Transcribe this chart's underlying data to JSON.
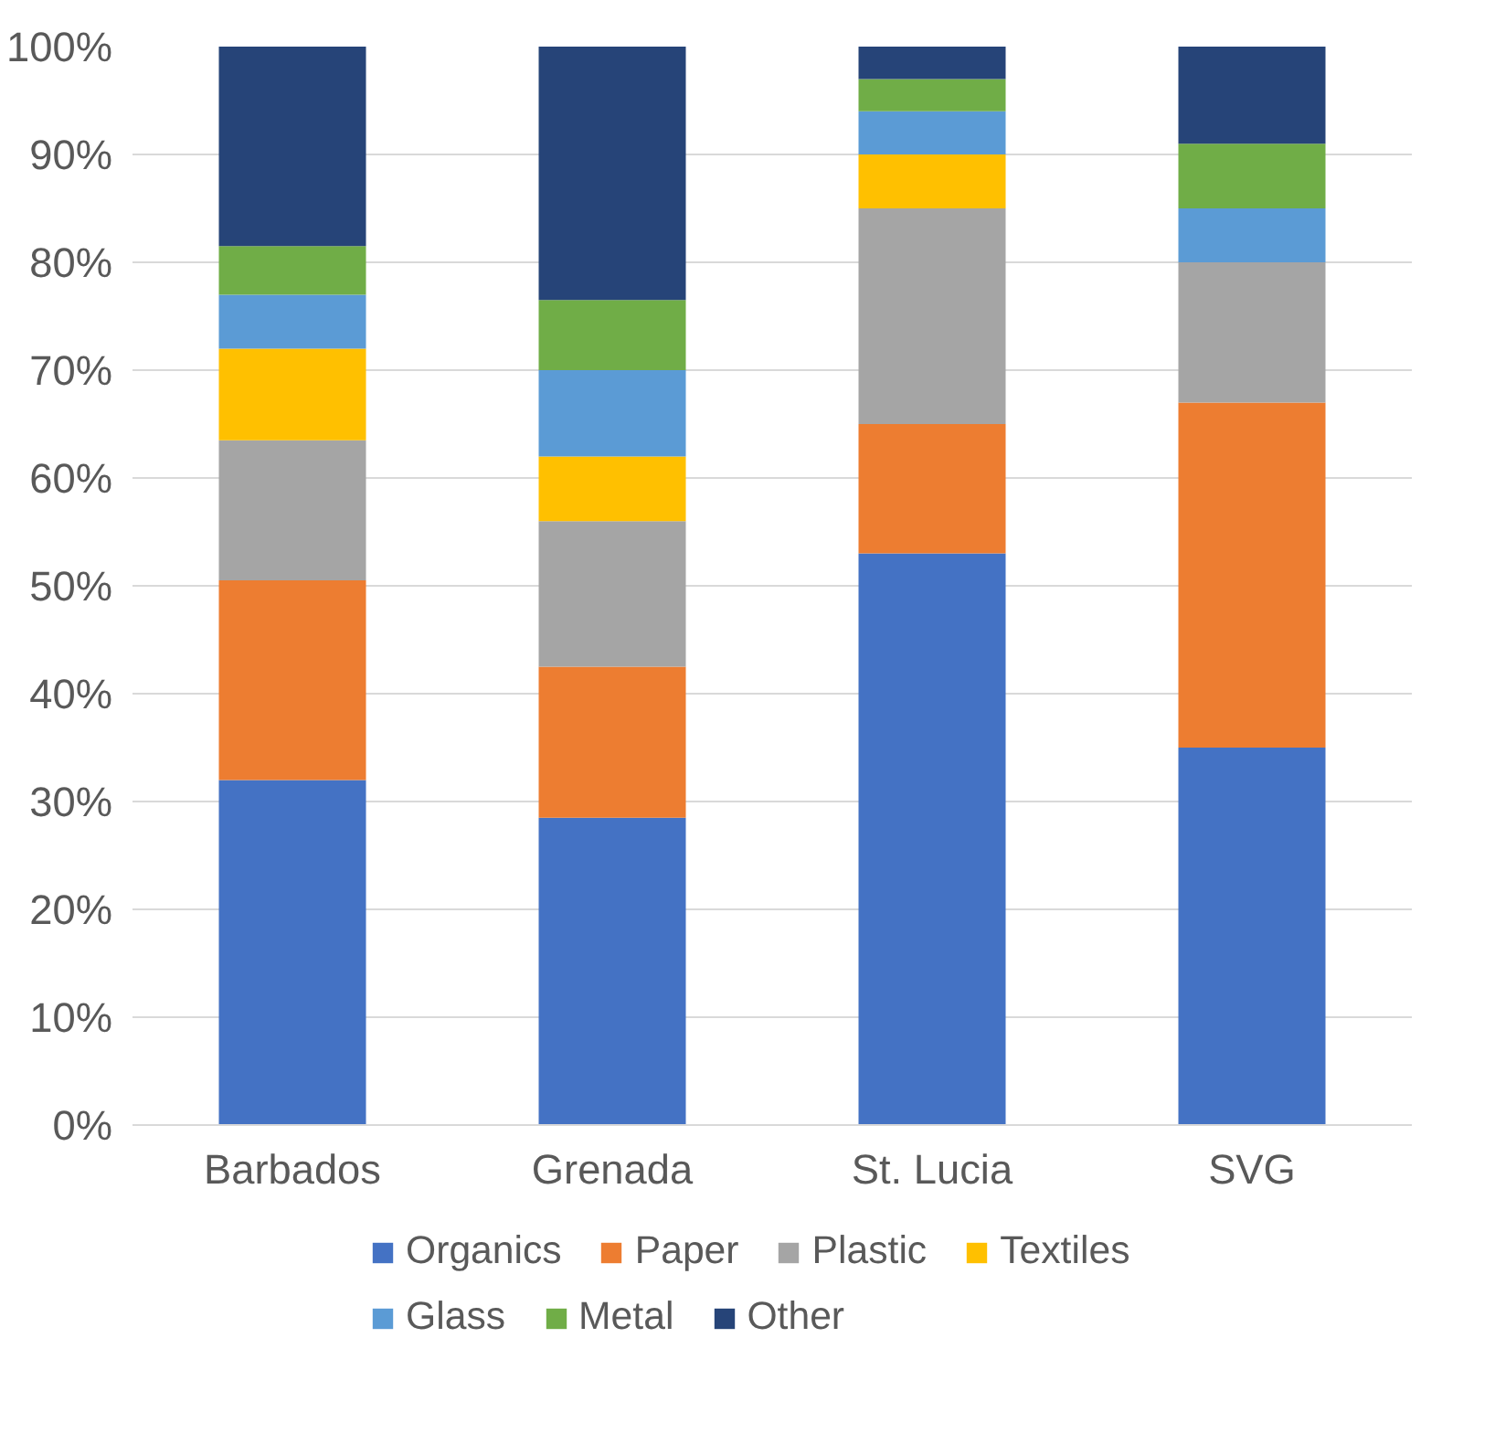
{
  "chart_data": {
    "type": "bar",
    "stacked": true,
    "categories": [
      "Barbados",
      "Grenada",
      "St. Lucia",
      "SVG"
    ],
    "series": [
      {
        "name": "Organics",
        "color": "#4472c4",
        "values": [
          32,
          28.5,
          53,
          35
        ]
      },
      {
        "name": "Paper",
        "color": "#ed7d31",
        "values": [
          18.5,
          14,
          12,
          32
        ]
      },
      {
        "name": "Plastic",
        "color": "#a5a5a5",
        "values": [
          13,
          13.5,
          20,
          13
        ]
      },
      {
        "name": "Textiles",
        "color": "#ffc000",
        "values": [
          8.5,
          6,
          5,
          0
        ]
      },
      {
        "name": "Glass",
        "color": "#5b9bd5",
        "values": [
          5,
          8,
          4,
          5
        ]
      },
      {
        "name": "Metal",
        "color": "#70ad47",
        "values": [
          4.5,
          6.5,
          3,
          6
        ]
      },
      {
        "name": "Other",
        "color": "#264478",
        "values": [
          18.5,
          23.5,
          3,
          9
        ]
      }
    ],
    "ylim": [
      0,
      100
    ],
    "yticks": [
      {
        "value": 0,
        "label": "0%"
      },
      {
        "value": 10,
        "label": "10%"
      },
      {
        "value": 20,
        "label": "20%"
      },
      {
        "value": 30,
        "label": "30%"
      },
      {
        "value": 40,
        "label": "40%"
      },
      {
        "value": 50,
        "label": "50%"
      },
      {
        "value": 60,
        "label": "60%"
      },
      {
        "value": 70,
        "label": "70%"
      },
      {
        "value": 80,
        "label": "80%"
      },
      {
        "value": 90,
        "label": "90%"
      },
      {
        "value": 100,
        "label": "100%"
      }
    ],
    "grid": "y",
    "legend": "bottom"
  }
}
